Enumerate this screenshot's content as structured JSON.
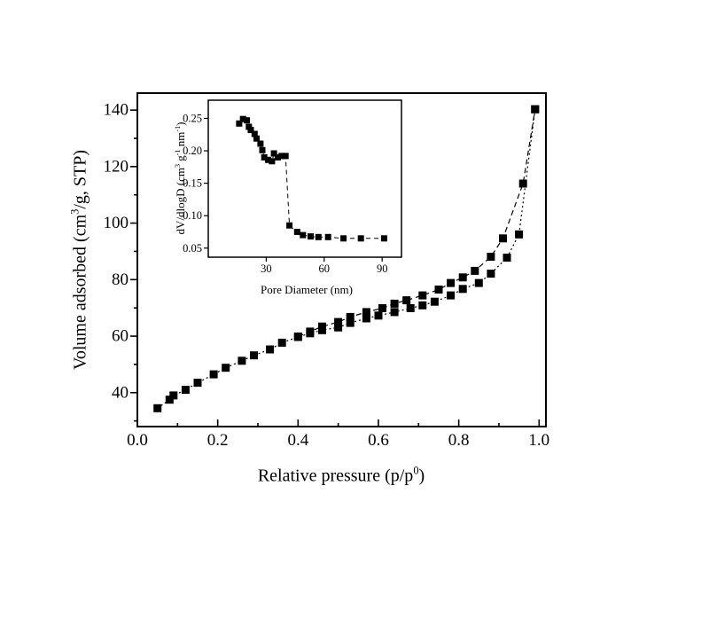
{
  "figure": {
    "background_color": "#ffffff",
    "ink_color": "#000000",
    "description": "Nitrogen adsorption-desorption isotherm with BJH pore size distribution inset"
  },
  "chart_data": [
    {
      "id": "main",
      "type": "scatter",
      "title": "",
      "xlabel": "Relative pressure (p/p⁰)",
      "ylabel": "Volume adsorbed (cm³/g, STP)",
      "xlabel_segments": [
        {
          "t": "Relative pressure (p/p"
        },
        {
          "t": "0",
          "sup": true
        },
        {
          "t": ")"
        }
      ],
      "ylabel_segments": [
        {
          "t": "Volume adsorbed (cm"
        },
        {
          "t": "3",
          "sup": true
        },
        {
          "t": "/g, STP)"
        }
      ],
      "xlim": [
        0,
        1.017
      ],
      "ylim": [
        28,
        146
      ],
      "grid": false,
      "legend": "none",
      "x_major_ticks": [
        0.0,
        0.2,
        0.4,
        0.6,
        0.8,
        1.0
      ],
      "x_tick_labels": [
        "0.0",
        "0.2",
        "0.4",
        "0.6",
        "0.8",
        "1.0"
      ],
      "x_minor_ticks": [
        0.1,
        0.3,
        0.5,
        0.7,
        0.9
      ],
      "y_major_ticks": [
        40,
        60,
        80,
        100,
        120,
        140
      ],
      "y_tick_labels": [
        "40",
        "60",
        "80",
        "100",
        "120",
        "140"
      ],
      "y_minor_ticks": [
        30,
        50,
        70,
        90,
        110,
        130
      ],
      "series": [
        {
          "name": "adsorption",
          "marker": "square",
          "color": "#000000",
          "dash": "2 3",
          "points": [
            [
              0.05,
              34.5
            ],
            [
              0.08,
              37.5
            ],
            [
              0.09,
              39.0
            ],
            [
              0.12,
              41.0
            ],
            [
              0.15,
              43.5
            ],
            [
              0.19,
              46.5
            ],
            [
              0.22,
              48.8
            ],
            [
              0.26,
              51.3
            ],
            [
              0.29,
              53.2
            ],
            [
              0.33,
              55.3
            ],
            [
              0.36,
              57.7
            ],
            [
              0.4,
              59.7
            ],
            [
              0.43,
              61.0
            ],
            [
              0.46,
              62.1
            ],
            [
              0.5,
              63.1
            ],
            [
              0.53,
              64.7
            ],
            [
              0.57,
              66.3
            ],
            [
              0.6,
              67.3
            ],
            [
              0.64,
              68.5
            ],
            [
              0.68,
              69.9
            ],
            [
              0.71,
              70.9
            ],
            [
              0.74,
              72.2
            ],
            [
              0.78,
              74.4
            ],
            [
              0.81,
              76.7
            ],
            [
              0.85,
              78.8
            ],
            [
              0.88,
              82.1
            ],
            [
              0.92,
              87.8
            ],
            [
              0.95,
              96.0
            ],
            [
              0.99,
              140.3
            ]
          ]
        },
        {
          "name": "desorption",
          "marker": "square",
          "color": "#000000",
          "dash": "6 4",
          "points": [
            [
              0.4,
              59.9
            ],
            [
              0.43,
              61.6
            ],
            [
              0.46,
              63.4
            ],
            [
              0.5,
              65.0
            ],
            [
              0.53,
              66.8
            ],
            [
              0.57,
              68.5
            ],
            [
              0.61,
              69.9
            ],
            [
              0.64,
              71.5
            ],
            [
              0.67,
              72.7
            ],
            [
              0.71,
              74.4
            ],
            [
              0.75,
              76.5
            ],
            [
              0.78,
              78.8
            ],
            [
              0.81,
              80.8
            ],
            [
              0.84,
              83.1
            ],
            [
              0.88,
              88.1
            ],
            [
              0.91,
              94.6
            ],
            [
              0.96,
              114.0
            ],
            [
              0.99,
              140.3
            ]
          ]
        }
      ]
    },
    {
      "id": "inset",
      "type": "scatter",
      "title": "",
      "xlabel": "Pore Diameter (nm)",
      "ylabel": "dV/dlogD (cm³ g⁻¹ nm⁻¹)",
      "ylabel_segments": [
        {
          "t": "dV/dlogD (cm"
        },
        {
          "t": "3",
          "sup": true
        },
        {
          "t": " g"
        },
        {
          "t": "-1",
          "sup": true
        },
        {
          "t": " nm"
        },
        {
          "t": "-1",
          "sup": true
        },
        {
          "t": ")"
        }
      ],
      "xlim": [
        0,
        100
      ],
      "ylim": [
        0.036,
        0.278
      ],
      "grid": false,
      "legend": "none",
      "x_major_ticks": [
        30,
        60,
        90
      ],
      "x_tick_labels": [
        "30",
        "60",
        "90"
      ],
      "x_minor_ticks": [],
      "y_major_ticks": [
        0.05,
        0.1,
        0.15,
        0.2,
        0.25
      ],
      "y_tick_labels": [
        "0.05",
        "0.10",
        "0.15",
        "0.20",
        "0.25"
      ],
      "y_minor_ticks": [],
      "series": [
        {
          "name": "pore-size-distribution",
          "marker": "square",
          "color": "#000000",
          "dash": "5 4",
          "points": [
            [
              16,
              0.242
            ],
            [
              18,
              0.249
            ],
            [
              20,
              0.247
            ],
            [
              21,
              0.237
            ],
            [
              22,
              0.232
            ],
            [
              24,
              0.226
            ],
            [
              25,
              0.219
            ],
            [
              27,
              0.211
            ],
            [
              28,
              0.201
            ],
            [
              29,
              0.19
            ],
            [
              31,
              0.186
            ],
            [
              33,
              0.184
            ],
            [
              34,
              0.196
            ],
            [
              36,
              0.19
            ],
            [
              38,
              0.192
            ],
            [
              40,
              0.192
            ],
            [
              42,
              0.085
            ],
            [
              46,
              0.075
            ],
            [
              49,
              0.07
            ],
            [
              53,
              0.068
            ],
            [
              57,
              0.067
            ],
            [
              62,
              0.067
            ],
            [
              70,
              0.065
            ],
            [
              79,
              0.065
            ],
            [
              91,
              0.065
            ]
          ]
        }
      ]
    }
  ]
}
